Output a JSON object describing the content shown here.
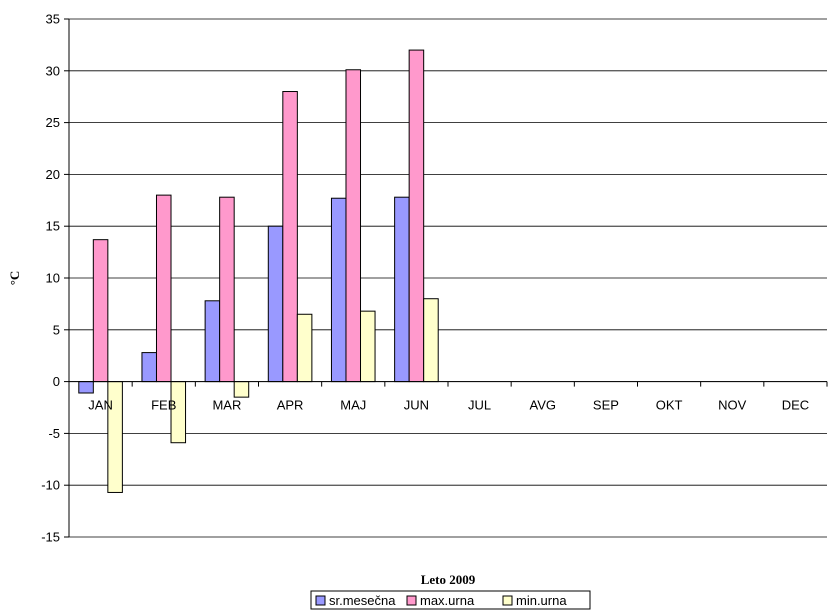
{
  "chart_data": {
    "type": "bar",
    "xlabel": "Leto 2009",
    "ylabel": "°C",
    "ylim": [
      -15,
      35
    ],
    "ytick_step": 5,
    "grid": true,
    "legend_position": "bottom",
    "categories": [
      "JAN",
      "FEB",
      "MAR",
      "APR",
      "MAJ",
      "JUN",
      "JUL",
      "AVG",
      "SEP",
      "OKT",
      "NOV",
      "DEC"
    ],
    "series": [
      {
        "name": "sr.mesečna",
        "color": "#9999FF",
        "values": [
          -1.1,
          2.8,
          7.8,
          15.0,
          17.7,
          17.8,
          null,
          null,
          null,
          null,
          null,
          null
        ]
      },
      {
        "name": "max.urna",
        "color": "#FF99CC",
        "values": [
          13.7,
          18.0,
          17.8,
          28.0,
          30.1,
          32.0,
          null,
          null,
          null,
          null,
          null,
          null
        ]
      },
      {
        "name": "min.urna",
        "color": "#FFFFCC",
        "values": [
          -10.7,
          -5.9,
          -1.5,
          6.5,
          6.8,
          8.0,
          null,
          null,
          null,
          null,
          null,
          null
        ]
      }
    ]
  }
}
